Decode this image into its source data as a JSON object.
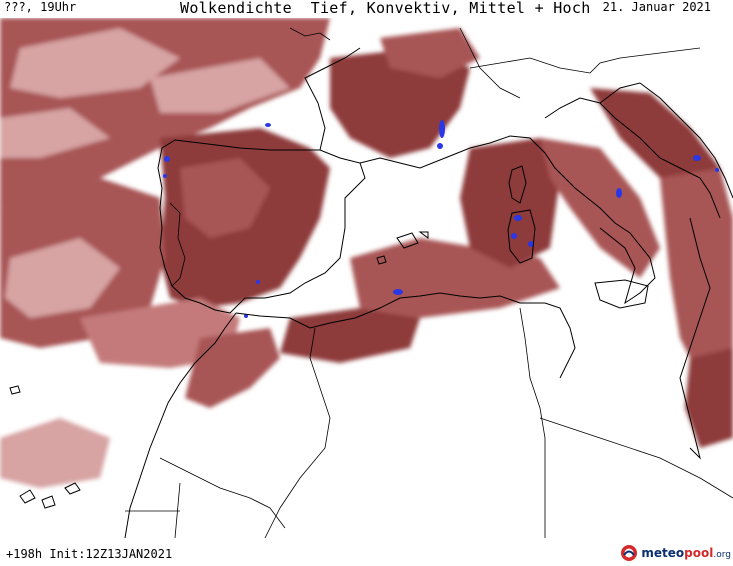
{
  "header": {
    "location_time": "???, 19Uhr",
    "title": "Wolkendichte  Tief, Konvektiv, Mittel + Hoch",
    "date": "21. Januar 2021"
  },
  "footer": {
    "forecast_info": "+198h Init:12Z13JAN2021",
    "brand_main": "meteo",
    "brand_accent": "pool",
    "brand_suffix": ".org"
  },
  "colors": {
    "cloud_dense": "#8e3a3a",
    "cloud_mid": "#a85555",
    "cloud_light": "#d7a3a3",
    "convective_precip": "#2a37e6",
    "background": "#ffffff",
    "coastline": "#000000"
  },
  "icons": [
    "meteopool-logo-icon"
  ]
}
